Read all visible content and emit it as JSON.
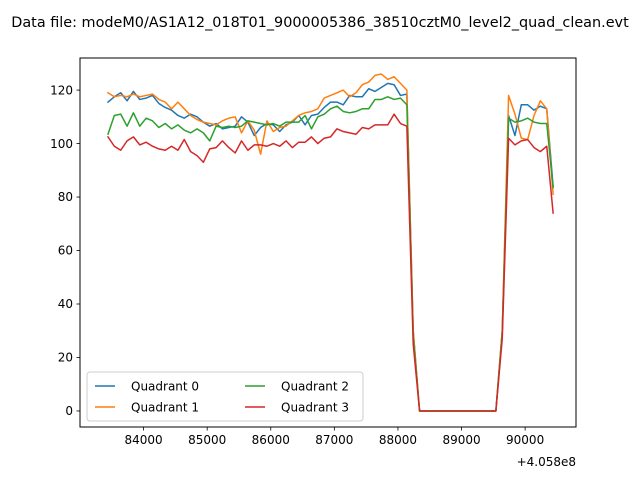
{
  "chart_data": {
    "type": "line",
    "title": "Data file: modeM0/AS1A12_018T01_9000005386_38510cztM0_level2_quad_clean.evt",
    "xlabel": "",
    "ylabel": "",
    "x_offset_label": "+4.058e8",
    "xlim": [
      83000,
      90800
    ],
    "ylim": [
      -6,
      132
    ],
    "x_ticks": [
      84000,
      85000,
      86000,
      87000,
      88000,
      89000,
      90000
    ],
    "y_ticks": [
      0,
      20,
      40,
      60,
      80,
      100,
      120
    ],
    "grid": false,
    "legend_position": "lower-left",
    "series": [
      {
        "name": "Quadrant 0",
        "color": "#1f77b4",
        "points": [
          [
            83440,
            115.5
          ],
          [
            83540,
            117.5
          ],
          [
            83640,
            119
          ],
          [
            83740,
            116
          ],
          [
            83840,
            119.5
          ],
          [
            83940,
            116.5
          ],
          [
            84040,
            117
          ],
          [
            84140,
            118
          ],
          [
            84240,
            115
          ],
          [
            84340,
            113.5
          ],
          [
            84440,
            112.5
          ],
          [
            84540,
            110.5
          ],
          [
            84640,
            109.5
          ],
          [
            84740,
            111
          ],
          [
            84840,
            110
          ],
          [
            84940,
            108
          ],
          [
            85040,
            106.5
          ],
          [
            85140,
            107.5
          ],
          [
            85240,
            105.5
          ],
          [
            85340,
            106
          ],
          [
            85440,
            106.5
          ],
          [
            85540,
            110
          ],
          [
            85640,
            108
          ],
          [
            85740,
            103
          ],
          [
            85840,
            106
          ],
          [
            85940,
            107.5
          ],
          [
            86040,
            107
          ],
          [
            86140,
            104.5
          ],
          [
            86240,
            107
          ],
          [
            86340,
            108
          ],
          [
            86440,
            110.5
          ],
          [
            86540,
            107
          ],
          [
            86640,
            110.5
          ],
          [
            86740,
            111
          ],
          [
            86840,
            113.5
          ],
          [
            86940,
            115.5
          ],
          [
            87040,
            115.5
          ],
          [
            87140,
            114.5
          ],
          [
            87240,
            118
          ],
          [
            87340,
            117.5
          ],
          [
            87440,
            117.5
          ],
          [
            87540,
            120.5
          ],
          [
            87640,
            119.5
          ],
          [
            87740,
            121
          ],
          [
            87840,
            122.5
          ],
          [
            87940,
            122
          ],
          [
            88040,
            118
          ],
          [
            88140,
            118.5
          ],
          [
            88240,
            30
          ],
          [
            88340,
            0
          ],
          [
            88440,
            0
          ],
          [
            88540,
            0
          ],
          [
            88640,
            0
          ],
          [
            88740,
            0
          ],
          [
            88840,
            0
          ],
          [
            88940,
            0
          ],
          [
            89040,
            0
          ],
          [
            89140,
            0
          ],
          [
            89240,
            0
          ],
          [
            89340,
            0
          ],
          [
            89440,
            0
          ],
          [
            89540,
            0
          ],
          [
            89640,
            30
          ],
          [
            89740,
            110.5
          ],
          [
            89840,
            103
          ],
          [
            89940,
            114.5
          ],
          [
            90040,
            114.5
          ],
          [
            90140,
            112.5
          ],
          [
            90240,
            114
          ],
          [
            90340,
            113
          ],
          [
            90440,
            84
          ]
        ]
      },
      {
        "name": "Quadrant 1",
        "color": "#ff7f0e",
        "points": [
          [
            83440,
            119
          ],
          [
            83540,
            117.5
          ],
          [
            83640,
            118
          ],
          [
            83740,
            117.5
          ],
          [
            83840,
            118.5
          ],
          [
            83940,
            117.5
          ],
          [
            84040,
            118
          ],
          [
            84140,
            118.5
          ],
          [
            84240,
            116.5
          ],
          [
            84340,
            115.5
          ],
          [
            84440,
            113
          ],
          [
            84540,
            115.5
          ],
          [
            84640,
            113
          ],
          [
            84740,
            110.5
          ],
          [
            84840,
            109
          ],
          [
            84940,
            108
          ],
          [
            85040,
            107.5
          ],
          [
            85140,
            107
          ],
          [
            85240,
            108.5
          ],
          [
            85340,
            109.5
          ],
          [
            85440,
            110
          ],
          [
            85540,
            104
          ],
          [
            85640,
            108.5
          ],
          [
            85740,
            105
          ],
          [
            85840,
            96
          ],
          [
            85940,
            108.5
          ],
          [
            86040,
            104.5
          ],
          [
            86140,
            106
          ],
          [
            86240,
            106.5
          ],
          [
            86340,
            108.5
          ],
          [
            86440,
            110.5
          ],
          [
            86540,
            111.5
          ],
          [
            86640,
            112
          ],
          [
            86740,
            113
          ],
          [
            86840,
            117
          ],
          [
            86940,
            118
          ],
          [
            87040,
            119
          ],
          [
            87140,
            120
          ],
          [
            87240,
            117.5
          ],
          [
            87340,
            119
          ],
          [
            87440,
            122
          ],
          [
            87540,
            123
          ],
          [
            87640,
            125.5
          ],
          [
            87740,
            126
          ],
          [
            87840,
            124
          ],
          [
            87940,
            125
          ],
          [
            88040,
            122.5
          ],
          [
            88140,
            120
          ],
          [
            88240,
            30
          ],
          [
            88340,
            0
          ],
          [
            88440,
            0
          ],
          [
            88540,
            0
          ],
          [
            88640,
            0
          ],
          [
            88740,
            0
          ],
          [
            88840,
            0
          ],
          [
            88940,
            0
          ],
          [
            89040,
            0
          ],
          [
            89140,
            0
          ],
          [
            89240,
            0
          ],
          [
            89340,
            0
          ],
          [
            89440,
            0
          ],
          [
            89540,
            0
          ],
          [
            89640,
            30
          ],
          [
            89740,
            118
          ],
          [
            89840,
            111
          ],
          [
            89940,
            102
          ],
          [
            90040,
            101.5
          ],
          [
            90140,
            110.5
          ],
          [
            90240,
            116
          ],
          [
            90340,
            113
          ],
          [
            90440,
            81
          ]
        ]
      },
      {
        "name": "Quadrant 2",
        "color": "#2ca02c",
        "points": [
          [
            83440,
            103.5
          ],
          [
            83540,
            110.5
          ],
          [
            83640,
            111
          ],
          [
            83740,
            106.5
          ],
          [
            83840,
            111.5
          ],
          [
            83940,
            106.5
          ],
          [
            84040,
            109.5
          ],
          [
            84140,
            108.5
          ],
          [
            84240,
            106
          ],
          [
            84340,
            107.5
          ],
          [
            84440,
            105.5
          ],
          [
            84540,
            107
          ],
          [
            84640,
            105
          ],
          [
            84740,
            104
          ],
          [
            84840,
            105.5
          ],
          [
            84940,
            104
          ],
          [
            85040,
            101
          ],
          [
            85140,
            106.5
          ],
          [
            85240,
            106
          ],
          [
            85340,
            106.5
          ],
          [
            85440,
            106
          ],
          [
            85540,
            106.5
          ],
          [
            85640,
            108.5
          ],
          [
            85740,
            108
          ],
          [
            85840,
            107.5
          ],
          [
            85940,
            107
          ],
          [
            86040,
            107.5
          ],
          [
            86140,
            106.5
          ],
          [
            86240,
            108
          ],
          [
            86340,
            108
          ],
          [
            86440,
            108
          ],
          [
            86540,
            110.5
          ],
          [
            86640,
            105.5
          ],
          [
            86740,
            110
          ],
          [
            86840,
            111
          ],
          [
            86940,
            113
          ],
          [
            87040,
            114
          ],
          [
            87140,
            112
          ],
          [
            87240,
            111.5
          ],
          [
            87340,
            112
          ],
          [
            87440,
            113
          ],
          [
            87540,
            113
          ],
          [
            87640,
            116.5
          ],
          [
            87740,
            116.5
          ],
          [
            87840,
            117.5
          ],
          [
            87940,
            116.5
          ],
          [
            88040,
            117
          ],
          [
            88140,
            114.5
          ],
          [
            88240,
            28
          ],
          [
            88340,
            0
          ],
          [
            88440,
            0
          ],
          [
            88540,
            0
          ],
          [
            88640,
            0
          ],
          [
            88740,
            0
          ],
          [
            88840,
            0
          ],
          [
            88940,
            0
          ],
          [
            89040,
            0
          ],
          [
            89140,
            0
          ],
          [
            89240,
            0
          ],
          [
            89340,
            0
          ],
          [
            89440,
            0
          ],
          [
            89540,
            0
          ],
          [
            89640,
            29
          ],
          [
            89740,
            109.5
          ],
          [
            89840,
            108
          ],
          [
            89940,
            108.5
          ],
          [
            90040,
            109.5
          ],
          [
            90140,
            108
          ],
          [
            90240,
            107.5
          ],
          [
            90340,
            107.5
          ],
          [
            90440,
            83.5
          ]
        ]
      },
      {
        "name": "Quadrant 3",
        "color": "#d62728",
        "points": [
          [
            83440,
            102.5
          ],
          [
            83540,
            99
          ],
          [
            83640,
            97.5
          ],
          [
            83740,
            101
          ],
          [
            83840,
            102.5
          ],
          [
            83940,
            99.5
          ],
          [
            84040,
            100.5
          ],
          [
            84140,
            99
          ],
          [
            84240,
            98
          ],
          [
            84340,
            97.5
          ],
          [
            84440,
            99
          ],
          [
            84540,
            97.5
          ],
          [
            84640,
            101.5
          ],
          [
            84740,
            97
          ],
          [
            84840,
            95.5
          ],
          [
            84940,
            93
          ],
          [
            85040,
            98
          ],
          [
            85140,
            98.5
          ],
          [
            85240,
            101
          ],
          [
            85340,
            98.5
          ],
          [
            85440,
            96.5
          ],
          [
            85540,
            101
          ],
          [
            85640,
            97.5
          ],
          [
            85740,
            99.5
          ],
          [
            85840,
            99.5
          ],
          [
            85940,
            99
          ],
          [
            86040,
            100
          ],
          [
            86140,
            99
          ],
          [
            86240,
            101
          ],
          [
            86340,
            98.5
          ],
          [
            86440,
            100.5
          ],
          [
            86540,
            100.5
          ],
          [
            86640,
            102.5
          ],
          [
            86740,
            100
          ],
          [
            86840,
            102
          ],
          [
            86940,
            102.5
          ],
          [
            87040,
            105.5
          ],
          [
            87140,
            104.5
          ],
          [
            87240,
            104
          ],
          [
            87340,
            103.5
          ],
          [
            87440,
            106
          ],
          [
            87540,
            105.5
          ],
          [
            87640,
            107
          ],
          [
            87740,
            107
          ],
          [
            87840,
            107
          ],
          [
            87940,
            111
          ],
          [
            88040,
            107.5
          ],
          [
            88140,
            106.5
          ],
          [
            88240,
            25
          ],
          [
            88340,
            0
          ],
          [
            88440,
            0
          ],
          [
            88540,
            0
          ],
          [
            88640,
            0
          ],
          [
            88740,
            0
          ],
          [
            88840,
            0
          ],
          [
            88940,
            0
          ],
          [
            89040,
            0
          ],
          [
            89140,
            0
          ],
          [
            89240,
            0
          ],
          [
            89340,
            0
          ],
          [
            89440,
            0
          ],
          [
            89540,
            0
          ],
          [
            89640,
            27
          ],
          [
            89740,
            102
          ],
          [
            89840,
            99.5
          ],
          [
            89940,
            101
          ],
          [
            90040,
            101.5
          ],
          [
            90140,
            98.5
          ],
          [
            90240,
            97
          ],
          [
            90340,
            99
          ],
          [
            90440,
            74
          ]
        ]
      }
    ]
  }
}
